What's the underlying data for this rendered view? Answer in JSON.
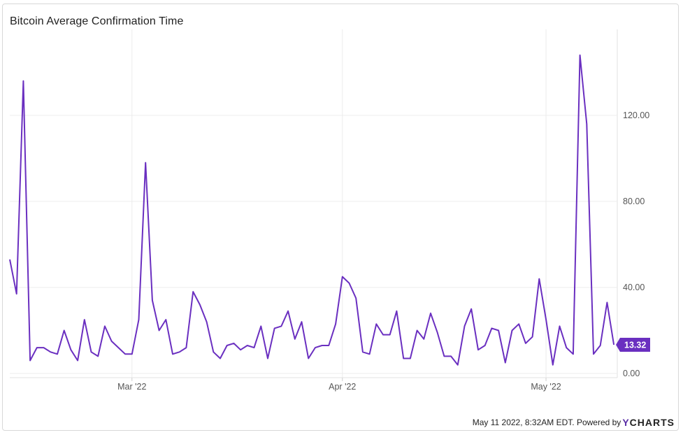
{
  "header": {
    "title": "Bitcoin Average Confirmation Time"
  },
  "footer": {
    "timestamp": "May 11 2022, 8:32AM EDT.",
    "powered_by": "Powered by",
    "brand_y": "Y",
    "brand_rest": "CHARTS"
  },
  "colors": {
    "line": "#6a2fc0",
    "badge": "#6a2fc0",
    "grid": "#ececec"
  },
  "chart_data": {
    "type": "line",
    "title": "Bitcoin Average Confirmation Time",
    "xlabel": "",
    "ylabel": "",
    "ylim": [
      0,
      160
    ],
    "yticks": [
      {
        "value": 0,
        "label": "0.00"
      },
      {
        "value": 40,
        "label": "40.00"
      },
      {
        "value": 80,
        "label": "80.00"
      },
      {
        "value": 120,
        "label": "120.00"
      }
    ],
    "xticks": [
      {
        "date": "2022-03-01",
        "label": "Mar '22"
      },
      {
        "date": "2022-04-01",
        "label": "Apr '22"
      },
      {
        "date": "2022-05-01",
        "label": "May '22"
      }
    ],
    "xrange": [
      "2022-02-11T00:00",
      "2022-05-11T12:00"
    ],
    "grid": true,
    "last_value_label": "13.32",
    "series": [
      {
        "dates": [
          "2022-02-11",
          "2022-02-12",
          "2022-02-13",
          "2022-02-14",
          "2022-02-15",
          "2022-02-16",
          "2022-02-17",
          "2022-02-18",
          "2022-02-19",
          "2022-02-20",
          "2022-02-21",
          "2022-02-22",
          "2022-02-23",
          "2022-02-24",
          "2022-02-25",
          "2022-02-26",
          "2022-02-27",
          "2022-02-28",
          "2022-03-01",
          "2022-03-02",
          "2022-03-03",
          "2022-03-04",
          "2022-03-05",
          "2022-03-06",
          "2022-03-07",
          "2022-03-08",
          "2022-03-09",
          "2022-03-10",
          "2022-03-11",
          "2022-03-12",
          "2022-03-13",
          "2022-03-14",
          "2022-03-15",
          "2022-03-16",
          "2022-03-17",
          "2022-03-18",
          "2022-03-19",
          "2022-03-20",
          "2022-03-21",
          "2022-03-22",
          "2022-03-23",
          "2022-03-24",
          "2022-03-25",
          "2022-03-26",
          "2022-03-27",
          "2022-03-28",
          "2022-03-29",
          "2022-03-30",
          "2022-03-31",
          "2022-04-01",
          "2022-04-02",
          "2022-04-03",
          "2022-04-04",
          "2022-04-05",
          "2022-04-06",
          "2022-04-07",
          "2022-04-08",
          "2022-04-09",
          "2022-04-10",
          "2022-04-11",
          "2022-04-12",
          "2022-04-13",
          "2022-04-14",
          "2022-04-15",
          "2022-04-16",
          "2022-04-17",
          "2022-04-18",
          "2022-04-19",
          "2022-04-20",
          "2022-04-21",
          "2022-04-22",
          "2022-04-23",
          "2022-04-24",
          "2022-04-25",
          "2022-04-26",
          "2022-04-27",
          "2022-04-28",
          "2022-04-29",
          "2022-04-30",
          "2022-05-01",
          "2022-05-02",
          "2022-05-03",
          "2022-05-04",
          "2022-05-05",
          "2022-05-06",
          "2022-05-07",
          "2022-05-08",
          "2022-05-09",
          "2022-05-10",
          "2022-05-11"
        ],
        "values": [
          53,
          37,
          136,
          6,
          12,
          12,
          10,
          9,
          20,
          11,
          6,
          25,
          10,
          8,
          22,
          15,
          12,
          9,
          9,
          25,
          98,
          34,
          20,
          25,
          9,
          10,
          12,
          38,
          32,
          24,
          10,
          7,
          13,
          14,
          11,
          13,
          12,
          22,
          7,
          21,
          22,
          29,
          16,
          24,
          7,
          12,
          13,
          13,
          23,
          45,
          42,
          35,
          10,
          9,
          23,
          18,
          18,
          29,
          7,
          7,
          20,
          16,
          28,
          19,
          8,
          8,
          4,
          22,
          30,
          11,
          13,
          21,
          20,
          5,
          20,
          23,
          14,
          17,
          44,
          25,
          4,
          22,
          12,
          9,
          148,
          116,
          9,
          13,
          33,
          13.32
        ]
      }
    ]
  }
}
